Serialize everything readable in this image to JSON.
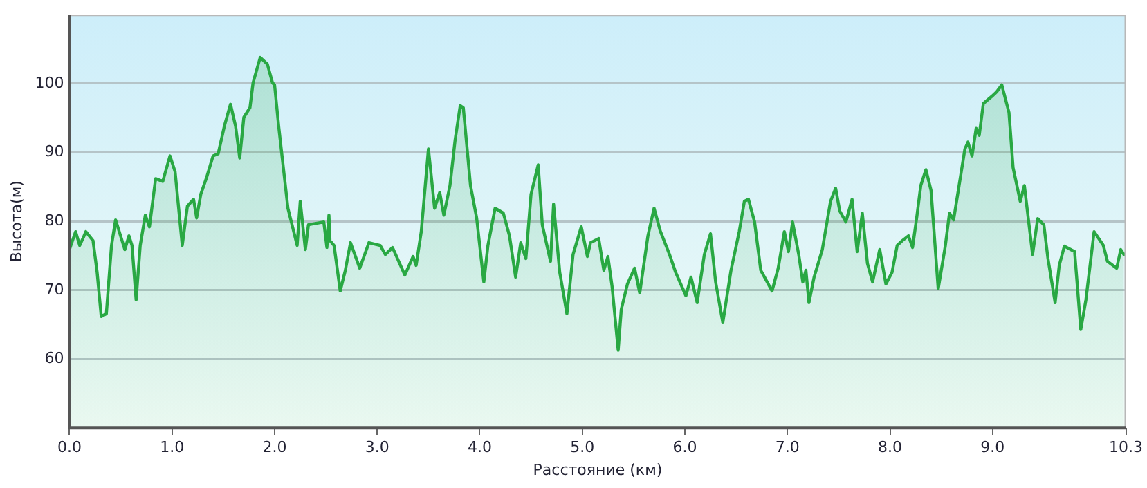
{
  "chart_data": {
    "type": "area",
    "xlabel": "Расстояние (км)",
    "ylabel": "Высота(м)",
    "xlim": [
      0,
      10.3
    ],
    "ylim": [
      50,
      110
    ],
    "xticks": [
      {
        "value": 0,
        "label": "0.0"
      },
      {
        "value": 1,
        "label": "1.0"
      },
      {
        "value": 2,
        "label": "2.0"
      },
      {
        "value": 3,
        "label": "3.0"
      },
      {
        "value": 4,
        "label": "4.0"
      },
      {
        "value": 5,
        "label": "5.0"
      },
      {
        "value": 6,
        "label": "6.0"
      },
      {
        "value": 7,
        "label": "7.0"
      },
      {
        "value": 8,
        "label": "8.0"
      },
      {
        "value": 9,
        "label": "9.0"
      },
      10.3
    ],
    "yticks": [
      60,
      70,
      80,
      90,
      100
    ],
    "grid": "y",
    "legend": false,
    "marker": "none",
    "line_style": "solid",
    "series": [
      {
        "color": "#29a843",
        "x": [
          0,
          0.06,
          0.1,
          0.14,
          0.16,
          0.23,
          0.27,
          0.31,
          0.36,
          0.41,
          0.45,
          0.54,
          0.58,
          0.61,
          0.65,
          0.69,
          0.74,
          0.78,
          0.84,
          0.91,
          0.98,
          1.03,
          1.1,
          1.15,
          1.21,
          1.24,
          1.28,
          1.34,
          1.4,
          1.45,
          1.51,
          1.57,
          1.62,
          1.66,
          1.7,
          1.76,
          1.79,
          1.86,
          1.93,
          1.98,
          2.0,
          2.04,
          2.13,
          2.22,
          2.25,
          2.3,
          2.33,
          2.48,
          2.51,
          2.53,
          2.54,
          2.58,
          2.64,
          2.69,
          2.74,
          2.83,
          2.92,
          3.03,
          3.08,
          3.15,
          3.27,
          3.35,
          3.38,
          3.43,
          3.5,
          3.56,
          3.61,
          3.65,
          3.71,
          3.76,
          3.81,
          3.84,
          3.91,
          3.97,
          4.04,
          4.08,
          4.15,
          4.23,
          4.29,
          4.35,
          4.4,
          4.45,
          4.5,
          4.57,
          4.61,
          4.69,
          4.72,
          4.78,
          4.85,
          4.91,
          4.99,
          5.05,
          5.08,
          5.16,
          5.21,
          5.25,
          5.29,
          5.35,
          5.38,
          5.44,
          5.51,
          5.56,
          5.64,
          5.7,
          5.76,
          5.85,
          5.91,
          6.01,
          6.06,
          6.12,
          6.19,
          6.25,
          6.3,
          6.37,
          6.45,
          6.53,
          6.58,
          6.62,
          6.68,
          6.74,
          6.85,
          6.91,
          6.97,
          7.01,
          7.05,
          7.11,
          7.15,
          7.18,
          7.21,
          7.26,
          7.34,
          7.42,
          7.47,
          7.51,
          7.57,
          7.63,
          7.68,
          7.73,
          7.78,
          7.83,
          7.9,
          7.96,
          8.02,
          8.07,
          8.12,
          8.18,
          8.22,
          8.26,
          8.3,
          8.35,
          8.4,
          8.47,
          8.54,
          8.58,
          8.62,
          8.68,
          8.73,
          8.76,
          8.8,
          8.84,
          8.87,
          8.91,
          8.99,
          9.04,
          9.09,
          9.16,
          9.2,
          9.27,
          9.31,
          9.39,
          9.44,
          9.5,
          9.54,
          9.61,
          9.65,
          9.7,
          9.8,
          9.86,
          9.91,
          9.99,
          10.08,
          10.12,
          10.21,
          10.25,
          10.28
        ],
        "values": [
          75.9,
          78.5,
          76.5,
          77.8,
          78.5,
          77.2,
          72.6,
          66.2,
          66.6,
          76.5,
          80.2,
          75.9,
          77.9,
          76.5,
          68.6,
          76.5,
          80.9,
          79.2,
          86.2,
          85.8,
          89.5,
          87.2,
          76.5,
          82.2,
          83.2,
          80.5,
          83.9,
          86.5,
          89.5,
          89.8,
          93.8,
          97,
          93.8,
          89.2,
          95.1,
          96.5,
          100.1,
          103.8,
          102.8,
          100.1,
          99.8,
          93.8,
          81.9,
          76.5,
          82.9,
          75.9,
          79.5,
          79.9,
          76.2,
          80.9,
          77.2,
          76.5,
          69.9,
          72.9,
          76.9,
          73.2,
          76.9,
          76.5,
          75.2,
          76.2,
          72.2,
          74.9,
          73.6,
          78.5,
          90.5,
          81.9,
          84.2,
          80.9,
          85.2,
          91.8,
          96.8,
          96.5,
          85.2,
          80.5,
          71.2,
          76.5,
          81.9,
          81.2,
          77.9,
          71.9,
          76.9,
          74.6,
          83.9,
          88.2,
          79.5,
          74.2,
          82.5,
          72.6,
          66.6,
          75.2,
          79.2,
          74.9,
          76.9,
          77.5,
          72.9,
          74.9,
          70.6,
          61.3,
          67.2,
          70.9,
          73.2,
          69.6,
          77.9,
          81.9,
          78.6,
          75.2,
          72.6,
          69.2,
          71.9,
          68.2,
          75.2,
          78.2,
          71.2,
          65.3,
          72.9,
          78.5,
          82.9,
          83.2,
          79.9,
          72.9,
          69.9,
          73.2,
          78.5,
          75.6,
          79.9,
          75.2,
          71.2,
          72.9,
          68.2,
          71.9,
          75.9,
          82.9,
          84.8,
          81.5,
          79.9,
          83.2,
          75.6,
          81.2,
          73.9,
          71.2,
          75.9,
          70.9,
          72.6,
          76.5,
          77.2,
          77.9,
          76.2,
          80.5,
          85.2,
          87.5,
          84.5,
          70.2,
          76.5,
          81.2,
          80.2,
          85.8,
          90.5,
          91.5,
          89.5,
          93.5,
          92.5,
          97.1,
          98.1,
          98.8,
          99.8,
          95.8,
          87.8,
          82.9,
          85.2,
          75.2,
          80.4,
          79.5,
          74.6,
          68.2,
          73.6,
          76.4,
          75.6,
          64.3,
          68.6,
          78.5,
          76.5,
          74.2,
          73.2,
          75.9,
          75.2
        ]
      }
    ]
  }
}
